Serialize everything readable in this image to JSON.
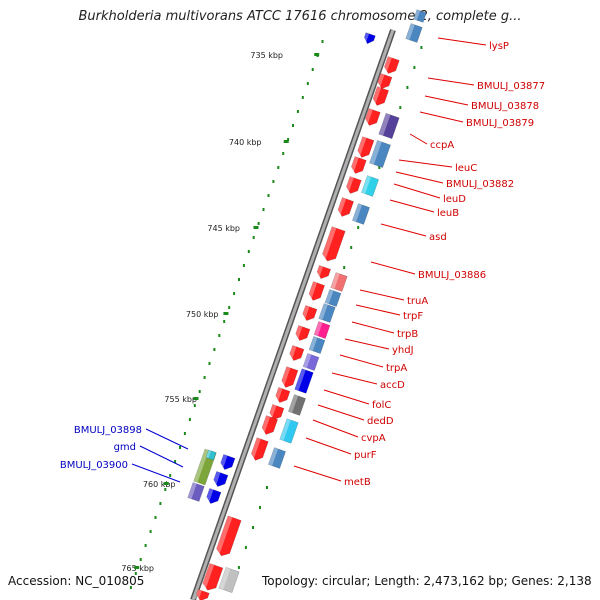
{
  "title": "Burkholderia multivorans ATCC 17616 chromosome 2, complete g...",
  "footer": {
    "accession": "Accession: NC_010805",
    "topology": "Topology: circular; Length: 2,473,162 bp; Genes: 2,138"
  },
  "colors": {
    "backbone": "#8a8a8a",
    "tick": "#1a8a1a",
    "label_red": "#d00000",
    "label_blue": "#0000c0",
    "leader_red": "#e00000",
    "leader_blue": "#0000d0"
  },
  "scale_labels": [
    "735 kbp",
    "740 kbp",
    "745 kbp",
    "750 kbp",
    "755 kbp",
    "760 kbp",
    "765 kbp"
  ],
  "gene_labels_right": [
    "lysP",
    "BMULJ_03877",
    "BMULJ_03878",
    "BMULJ_03879",
    "ccpA",
    "leuC",
    "BMULJ_03882",
    "leuD",
    "leuB",
    "asd",
    "BMULJ_03886",
    "truA",
    "trpF",
    "trpB",
    "yhdJ",
    "trpA",
    "accD",
    "folC",
    "dedD",
    "cvpA",
    "purF",
    "metB"
  ],
  "gene_labels_left": [
    "BMULJ_03898",
    "gmd",
    "BMULJ_03900"
  ]
}
